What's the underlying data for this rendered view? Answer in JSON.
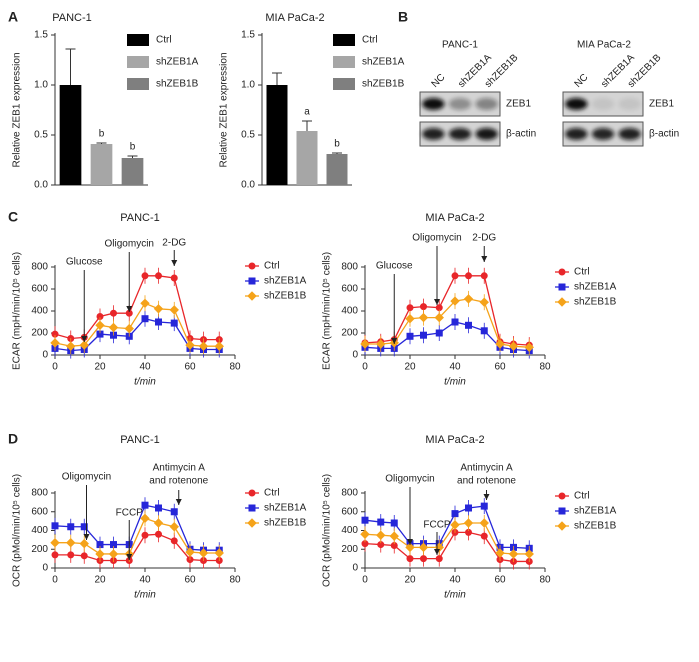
{
  "panel_labels": [
    "A",
    "B",
    "C",
    "D"
  ],
  "blots": [
    {
      "title": "PANC-1",
      "lanes": [
        "NC",
        "shZEB1A",
        "shZEB1B"
      ],
      "rows": [
        "ZEB1",
        "β-actin"
      ]
    },
    {
      "title": "MIA PaCa-2",
      "lanes": [
        "NC",
        "shZEB1A",
        "shZEB1B"
      ],
      "rows": [
        "ZEB1",
        "β-actin"
      ]
    }
  ],
  "chart_data": [
    {
      "type": "bar",
      "title": "PANC-1",
      "ylabel": "Relative ZEB1 expression",
      "categories": [
        "Ctrl",
        "shZEB1A",
        "shZEB1B"
      ],
      "values": [
        1.0,
        0.41,
        0.27
      ],
      "errors": [
        0.36,
        0.01,
        0.02
      ],
      "colors": [
        "#000000",
        "#a6a6a6",
        "#7f7f7f"
      ],
      "annotations": [
        {
          "index": 1,
          "text": "b"
        },
        {
          "index": 2,
          "text": "b"
        }
      ],
      "ylim": [
        0,
        1.5
      ],
      "yticks": [
        {
          "value": 0,
          "label": "0.0"
        },
        {
          "value": 0.5,
          "label": "0.5"
        },
        {
          "value": 1,
          "label": "1.0"
        },
        {
          "value": 1.5,
          "label": "1.5"
        }
      ]
    },
    {
      "type": "bar",
      "title": "MIA PaCa-2",
      "ylabel": "Relative ZEB1 expression",
      "categories": [
        "Ctrl",
        "shZEB1A",
        "shZEB1B"
      ],
      "values": [
        1.0,
        0.54,
        0.31
      ],
      "errors": [
        0.12,
        0.1,
        0.01
      ],
      "colors": [
        "#000000",
        "#a6a6a6",
        "#7f7f7f"
      ],
      "annotations": [
        {
          "index": 1,
          "text": "a"
        },
        {
          "index": 2,
          "text": "b"
        }
      ],
      "ylim": [
        0,
        1.5
      ],
      "yticks": [
        {
          "value": 0,
          "label": "0.0"
        },
        {
          "value": 0.5,
          "label": "0.5"
        },
        {
          "value": 1,
          "label": "1.0"
        },
        {
          "value": 1.5,
          "label": "1.5"
        }
      ]
    },
    {
      "type": "line",
      "title": "PANC-1",
      "xlabel": "t/min",
      "ylabel": "ECAR (mpH/min/10⁵ cells)",
      "x": [
        0,
        7,
        13,
        20,
        26,
        33,
        40,
        46,
        53,
        60,
        66,
        73
      ],
      "series": [
        {
          "name": "Ctrl",
          "color": "#e8262a",
          "marker": "circle",
          "values": [
            190,
            150,
            160,
            350,
            380,
            380,
            720,
            720,
            700,
            150,
            140,
            140
          ]
        },
        {
          "name": "shZEB1A",
          "color": "#2626d9",
          "marker": "square",
          "values": [
            60,
            40,
            50,
            190,
            180,
            170,
            330,
            300,
            290,
            60,
            50,
            50
          ]
        },
        {
          "name": "shZEB1B",
          "color": "#f5a31a",
          "marker": "diamond",
          "values": [
            110,
            80,
            90,
            270,
            250,
            240,
            470,
            420,
            410,
            90,
            80,
            80
          ]
        }
      ],
      "annotations": [
        {
          "text": [
            "Glucose"
          ],
          "x": 13
        },
        {
          "text": [
            "Oligomycin"
          ],
          "x": 33
        },
        {
          "text": [
            "2-DG"
          ],
          "x": 53
        }
      ],
      "xlim": [
        0,
        80
      ],
      "xticks": [
        0,
        20,
        40,
        60,
        80
      ],
      "ylim": [
        0,
        800
      ],
      "yticks": [
        0,
        200,
        400,
        600,
        800
      ]
    },
    {
      "type": "line",
      "title": "MIA PaCa-2",
      "xlabel": "t/min",
      "ylabel": "ECAR (mpH/min/10⁵ cells)",
      "x": [
        0,
        7,
        13,
        20,
        26,
        33,
        40,
        46,
        53,
        60,
        66,
        73
      ],
      "series": [
        {
          "name": "Ctrl",
          "color": "#e8262a",
          "marker": "circle",
          "values": [
            110,
            120,
            140,
            430,
            440,
            430,
            720,
            720,
            720,
            120,
            100,
            90
          ]
        },
        {
          "name": "shZEB1A",
          "color": "#2626d9",
          "marker": "square",
          "values": [
            70,
            60,
            60,
            170,
            180,
            200,
            300,
            270,
            220,
            70,
            50,
            40
          ]
        },
        {
          "name": "shZEB1B",
          "color": "#f5a31a",
          "marker": "diamond",
          "values": [
            100,
            100,
            110,
            330,
            340,
            340,
            490,
            510,
            480,
            100,
            80,
            70
          ]
        }
      ],
      "annotations": [
        {
          "text": [
            "Glucose"
          ],
          "x": 13
        },
        {
          "text": [
            "Oligomycin"
          ],
          "x": 32
        },
        {
          "text": [
            "2-DG"
          ],
          "x": 53
        }
      ],
      "xlim": [
        0,
        80
      ],
      "xticks": [
        0,
        20,
        40,
        60,
        80
      ],
      "ylim": [
        0,
        800
      ],
      "yticks": [
        0,
        200,
        400,
        600,
        800
      ]
    },
    {
      "type": "line",
      "title": "PANC-1",
      "xlabel": "t/min",
      "ylabel": "OCR (pMol/min/10⁵ cells)",
      "x": [
        0,
        7,
        13,
        20,
        26,
        33,
        40,
        46,
        53,
        60,
        66,
        73
      ],
      "series": [
        {
          "name": "Ctrl",
          "color": "#e8262a",
          "marker": "circle",
          "values": [
            140,
            140,
            130,
            80,
            80,
            80,
            350,
            360,
            290,
            90,
            80,
            80
          ]
        },
        {
          "name": "shZEB1A",
          "color": "#2626d9",
          "marker": "square",
          "values": [
            450,
            440,
            440,
            250,
            250,
            250,
            670,
            640,
            600,
            200,
            190,
            190
          ]
        },
        {
          "name": "shZEB1B",
          "color": "#f5a31a",
          "marker": "diamond",
          "values": [
            270,
            270,
            260,
            150,
            150,
            150,
            530,
            480,
            440,
            170,
            160,
            160
          ]
        }
      ],
      "annotations": [
        {
          "text": [
            "Oligomycin"
          ],
          "x": 14
        },
        {
          "text": [
            "FCCP"
          ],
          "x": 33
        },
        {
          "text": [
            "Antimycin A",
            "and rotenone"
          ],
          "x": 55
        }
      ],
      "xlim": [
        0,
        80
      ],
      "xticks": [
        0,
        20,
        40,
        60,
        80
      ],
      "ylim": [
        0,
        800
      ],
      "yticks": [
        0,
        200,
        400,
        600,
        800
      ]
    },
    {
      "type": "line",
      "title": "MIA PaCa-2",
      "xlabel": "t/min",
      "ylabel": "OCR (pMol/min/10⁵ cells)",
      "x": [
        0,
        7,
        13,
        20,
        26,
        33,
        40,
        46,
        53,
        60,
        66,
        73
      ],
      "series": [
        {
          "name": "Ctrl",
          "color": "#e8262a",
          "marker": "circle",
          "values": [
            260,
            250,
            240,
            100,
            100,
            100,
            380,
            380,
            340,
            90,
            70,
            70
          ]
        },
        {
          "name": "shZEB1A",
          "color": "#2626d9",
          "marker": "square",
          "values": [
            510,
            490,
            480,
            260,
            260,
            260,
            580,
            640,
            660,
            220,
            220,
            210
          ]
        },
        {
          "name": "shZEB1B",
          "color": "#f5a31a",
          "marker": "diamond",
          "values": [
            360,
            350,
            340,
            220,
            220,
            220,
            460,
            480,
            480,
            160,
            150,
            150
          ]
        }
      ],
      "annotations": [
        {
          "text": [
            "Oligomycin"
          ],
          "x": 20
        },
        {
          "text": [
            "FCCP"
          ],
          "x": 32
        },
        {
          "text": [
            "Antimycin A",
            "and rotenone"
          ],
          "x": 54
        }
      ],
      "xlim": [
        0,
        80
      ],
      "xticks": [
        0,
        20,
        40,
        60,
        80
      ],
      "ylim": [
        0,
        800
      ],
      "yticks": [
        0,
        200,
        400,
        600,
        800
      ]
    }
  ]
}
